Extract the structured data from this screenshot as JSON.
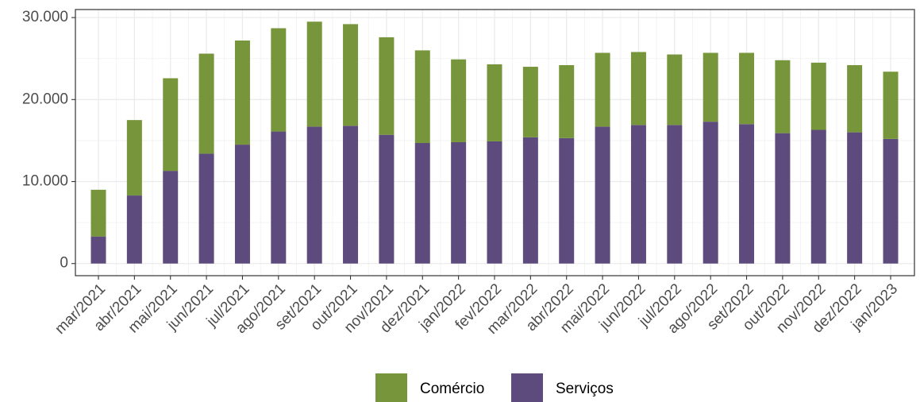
{
  "chart_data": {
    "type": "stacked_bar",
    "categories": [
      "mar/2021",
      "abr/2021",
      "mai/2021",
      "jun/2021",
      "jul/2021",
      "ago/2021",
      "set/2021",
      "out/2021",
      "nov/2021",
      "dez/2021",
      "jan/2022",
      "fev/2022",
      "mar/2022",
      "abr/2022",
      "mai/2022",
      "jun/2022",
      "jul/2022",
      "ago/2022",
      "set/2022",
      "out/2022",
      "nov/2022",
      "dez/2022",
      "jan/2023"
    ],
    "series": [
      {
        "name": "Comércio",
        "color": "#77963b",
        "values": [
          5700,
          9200,
          11300,
          12200,
          12700,
          12600,
          12800,
          12400,
          11900,
          11300,
          10100,
          9400,
          8600,
          8900,
          9000,
          8900,
          8600,
          8400,
          8700,
          8900,
          8200,
          8200,
          8200
        ]
      },
      {
        "name": "Serviços",
        "color": "#5e4b7e",
        "values": [
          3300,
          8300,
          11300,
          13400,
          14500,
          16100,
          16700,
          16800,
          15700,
          14700,
          14800,
          14900,
          15400,
          15300,
          16700,
          16900,
          16900,
          17300,
          17000,
          15900,
          16300,
          16000,
          15200
        ]
      }
    ],
    "ylim": [
      -1480,
      30980
    ],
    "yticks": [
      0,
      {
        "value": 10000,
        "label": "10.000"
      },
      {
        "value": 20000,
        "label": "20.000"
      },
      {
        "value": 30000,
        "label": "30.000"
      }
    ],
    "grid": true,
    "legend": "bottom"
  }
}
